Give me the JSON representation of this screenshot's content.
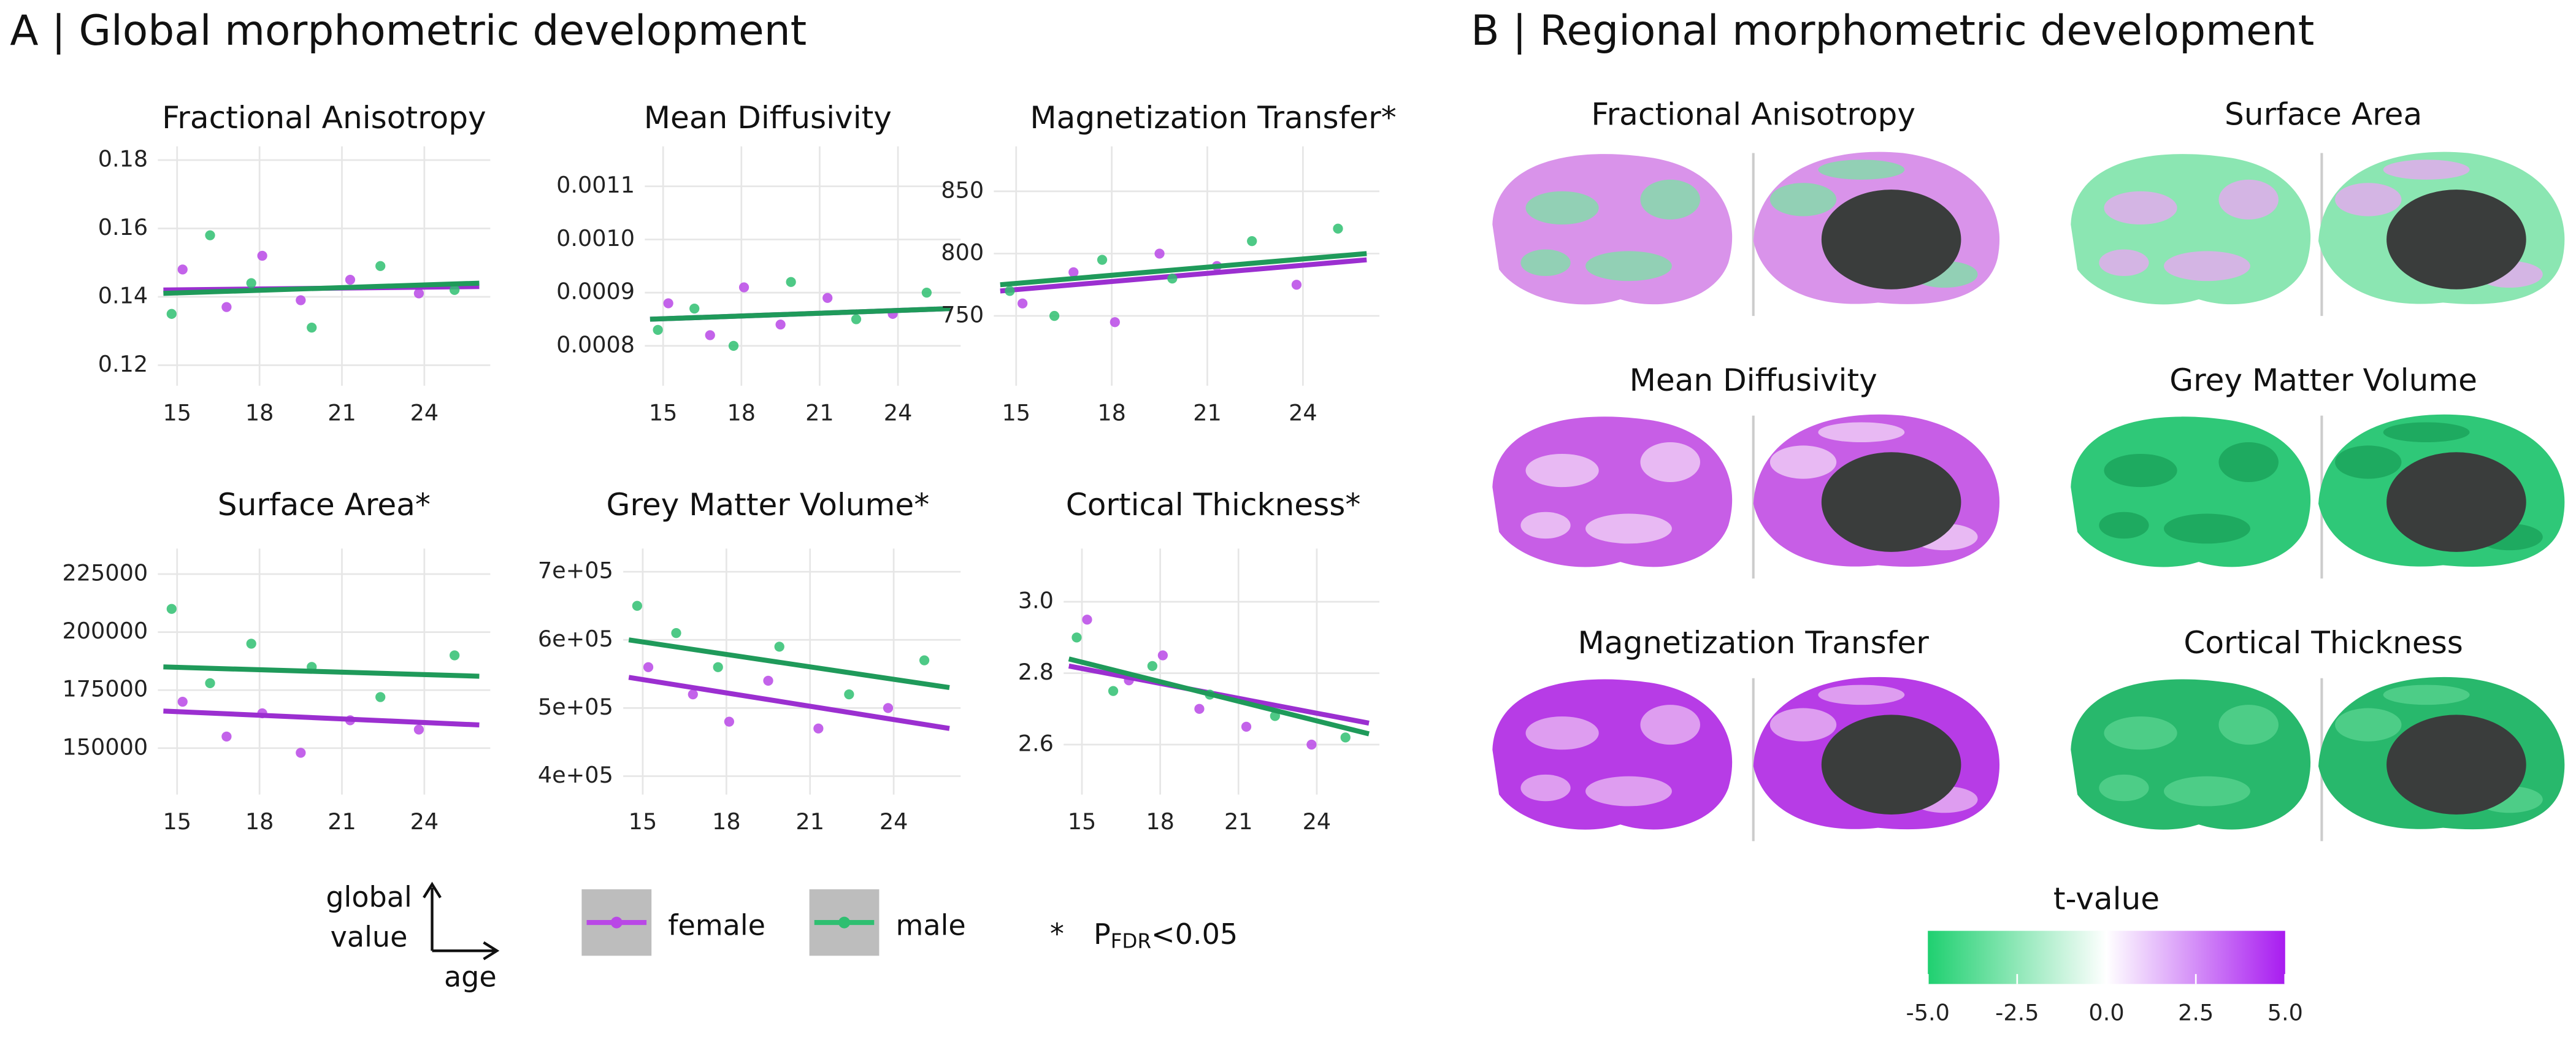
{
  "panel_a_title": "A | Global morphometric development",
  "panel_b_title": "B | Regional morphometric development",
  "chart_data": [
    {
      "type": "scatter",
      "title": "Fractional Anisotropy",
      "xlim": [
        14.3,
        26.4
      ],
      "xticks": [
        15,
        18,
        21,
        24
      ],
      "ylim": [
        0.114,
        0.184
      ],
      "yticks": [
        0.12,
        0.14,
        0.16,
        0.18
      ],
      "grid": true,
      "series": [
        {
          "color": "#b948e6",
          "x": [
            15.2,
            16.8,
            18.1,
            19.5,
            21.3,
            23.8
          ],
          "values": [
            0.148,
            0.137,
            0.152,
            0.139,
            0.145,
            0.141
          ],
          "trend": {
            "color": "#9b2fd0",
            "x": [
              14.5,
              26
            ],
            "values": [
              0.142,
              0.143
            ]
          }
        },
        {
          "color": "#2fbf71",
          "x": [
            14.8,
            16.2,
            17.7,
            19.9,
            22.4,
            25.1
          ],
          "values": [
            0.135,
            0.158,
            0.144,
            0.131,
            0.149,
            0.142
          ],
          "trend": {
            "color": "#1f9a5a",
            "x": [
              14.5,
              26
            ],
            "values": [
              0.141,
              0.144
            ]
          }
        }
      ]
    },
    {
      "type": "scatter",
      "title": "Mean Diffusivity",
      "xlim": [
        14.3,
        26.4
      ],
      "xticks": [
        15,
        18,
        21,
        24
      ],
      "ylim": [
        0.000725,
        0.001175
      ],
      "yticks": [
        0.0008,
        0.0009,
        {
          "value": 0.001,
          "label": "0.0010"
        },
        0.0011
      ],
      "grid": true,
      "series": [
        {
          "color": "#b948e6",
          "x": [
            15.2,
            16.8,
            18.1,
            19.5,
            21.3,
            23.8
          ],
          "values": [
            0.00088,
            0.00082,
            0.00091,
            0.00084,
            0.00089,
            0.00086
          ],
          "trend": {
            "color": "#9b2fd0",
            "x": [
              14.5,
              26
            ],
            "values": [
              0.00085,
              0.00087
            ]
          }
        },
        {
          "color": "#2fbf71",
          "x": [
            14.8,
            16.2,
            17.7,
            19.9,
            22.4,
            25.1
          ],
          "values": [
            0.00083,
            0.00087,
            0.0008,
            0.00092,
            0.00085,
            0.0009
          ],
          "trend": {
            "color": "#1f9a5a",
            "x": [
              14.5,
              26
            ],
            "values": [
              0.00085,
              0.00087
            ]
          }
        }
      ]
    },
    {
      "type": "scatter",
      "title": "Magnetization Transfer*",
      "xlim": [
        14.3,
        26.4
      ],
      "xticks": [
        15,
        18,
        21,
        24
      ],
      "ylim": [
        694,
        886
      ],
      "yticks": [
        750,
        800,
        850
      ],
      "grid": true,
      "series": [
        {
          "color": "#b948e6",
          "x": [
            15.2,
            16.8,
            18.1,
            19.5,
            21.3,
            23.8
          ],
          "values": [
            760,
            785,
            745,
            800,
            790,
            775
          ],
          "trend": {
            "color": "#9b2fd0",
            "x": [
              14.5,
              26
            ],
            "values": [
              770,
              795
            ]
          }
        },
        {
          "color": "#2fbf71",
          "x": [
            14.8,
            16.2,
            17.7,
            19.9,
            22.4,
            25.1
          ],
          "values": [
            770,
            750,
            795,
            780,
            810,
            820
          ],
          "trend": {
            "color": "#1f9a5a",
            "x": [
              14.5,
              26
            ],
            "values": [
              775,
              800
            ]
          }
        }
      ]
    },
    {
      "type": "scatter",
      "title": "Surface Area*",
      "xlim": [
        14.3,
        26.4
      ],
      "xticks": [
        15,
        18,
        21,
        24
      ],
      "ylim": [
        130000,
        236000
      ],
      "yticks": [
        150000,
        175000,
        200000,
        225000
      ],
      "grid": true,
      "series": [
        {
          "color": "#b948e6",
          "x": [
            15.2,
            16.8,
            18.1,
            19.5,
            21.3,
            23.8
          ],
          "values": [
            170000,
            155000,
            165000,
            148000,
            162000,
            158000
          ],
          "trend": {
            "color": "#9b2fd0",
            "x": [
              14.5,
              26
            ],
            "values": [
              166000,
              160000
            ]
          }
        },
        {
          "color": "#2fbf71",
          "x": [
            14.8,
            16.2,
            17.7,
            19.9,
            22.4,
            25.1
          ],
          "values": [
            210000,
            178000,
            195000,
            185000,
            172000,
            190000
          ],
          "trend": {
            "color": "#1f9a5a",
            "x": [
              14.5,
              26
            ],
            "values": [
              185000,
              181000
            ]
          }
        }
      ]
    },
    {
      "type": "scatter",
      "title": "Grey Matter Volume*",
      "xlim": [
        14.3,
        26.4
      ],
      "xticks": [
        15,
        18,
        21,
        24
      ],
      "ylim": [
        373000,
        734000
      ],
      "yticks": [
        {
          "value": 400000,
          "label": "4e+05"
        },
        {
          "value": 500000,
          "label": "5e+05"
        },
        {
          "value": 600000,
          "label": "6e+05"
        },
        {
          "value": 700000,
          "label": "7e+05"
        }
      ],
      "grid": true,
      "series": [
        {
          "color": "#b948e6",
          "x": [
            15.2,
            16.8,
            18.1,
            19.5,
            21.3,
            23.8
          ],
          "values": [
            560000,
            520000,
            480000,
            540000,
            470000,
            500000
          ],
          "trend": {
            "color": "#9b2fd0",
            "x": [
              14.5,
              26
            ],
            "values": [
              545000,
              470000
            ]
          }
        },
        {
          "color": "#2fbf71",
          "x": [
            14.8,
            16.2,
            17.7,
            19.9,
            22.4,
            25.1
          ],
          "values": [
            650000,
            610000,
            560000,
            590000,
            520000,
            570000
          ],
          "trend": {
            "color": "#1f9a5a",
            "x": [
              14.5,
              26
            ],
            "values": [
              600000,
              530000
            ]
          }
        }
      ]
    },
    {
      "type": "scatter",
      "title": "Cortical Thickness*",
      "xlim": [
        14.3,
        26.4
      ],
      "xticks": [
        15,
        18,
        21,
        24
      ],
      "ylim": [
        2.46,
        3.149
      ],
      "yticks": [
        2.6,
        2.8,
        {
          "value": 3,
          "label": "3.0"
        }
      ],
      "grid": true,
      "series": [
        {
          "color": "#b948e6",
          "x": [
            15.2,
            16.8,
            18.1,
            19.5,
            21.3,
            23.8
          ],
          "values": [
            2.95,
            2.78,
            2.85,
            2.7,
            2.65,
            2.6
          ],
          "trend": {
            "color": "#9b2fd0",
            "x": [
              14.5,
              26
            ],
            "values": [
              2.82,
              2.66
            ]
          }
        },
        {
          "color": "#2fbf71",
          "x": [
            14.8,
            16.2,
            17.7,
            19.9,
            22.4,
            25.1
          ],
          "values": [
            2.9,
            2.75,
            2.82,
            2.74,
            2.68,
            2.62
          ],
          "trend": {
            "color": "#1f9a5a",
            "x": [
              14.5,
              26
            ],
            "values": [
              2.84,
              2.63
            ]
          }
        }
      ]
    }
  ],
  "legend": {
    "axis_key": {
      "line1": "global",
      "line2": "value",
      "x": "age"
    },
    "items": [
      {
        "name": "female",
        "color": "#b948e6"
      },
      {
        "name": "male",
        "color": "#2fbf71"
      }
    ],
    "note": {
      "symbol": "*",
      "p": "P",
      "sub": "FDR",
      "rest": "<0.05"
    }
  },
  "maps": [
    {
      "label": "Fractional Anisotropy",
      "colors": [
        "#d993ea",
        "#7fe0a8"
      ]
    },
    {
      "label": "Surface Area",
      "colors": [
        "#8be6b2",
        "#e6a9f0"
      ]
    },
    {
      "label": "Mean Diffusivity",
      "colors": [
        "#c75ee6",
        "#f0d0f6"
      ]
    },
    {
      "label": "Grey Matter Volume",
      "colors": [
        "#2fc878",
        "#1aa35a"
      ]
    },
    {
      "label": "Magnetization Transfer",
      "colors": [
        "#b73ce6",
        "#e7b5f2"
      ]
    },
    {
      "label": "Cortical Thickness",
      "colors": [
        "#28b86c",
        "#56d28f"
      ]
    }
  ],
  "colorbar": {
    "title": "t-value",
    "colors": [
      "#1fd070",
      "#ffffff",
      "#a81cf0"
    ],
    "lim": [
      -5,
      5
    ],
    "ticks": [
      {
        "value": -5,
        "label": "-5.0"
      },
      -2.5,
      {
        "value": 0,
        "label": "0.0"
      },
      2.5,
      {
        "value": 5,
        "label": "5.0"
      }
    ]
  }
}
